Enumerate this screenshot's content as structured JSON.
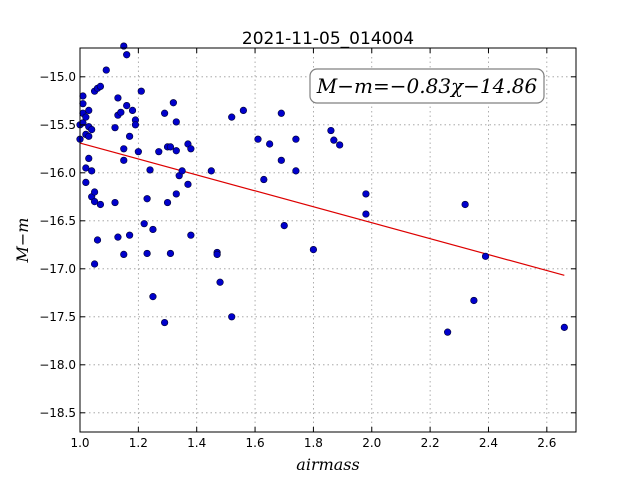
{
  "chart_data": {
    "type": "scatter",
    "title": "2021-11-05_014004",
    "xlabel": "airmass",
    "ylabel": "M−m",
    "xlim": [
      1.0,
      2.7
    ],
    "ylim": [
      -18.7,
      -14.7
    ],
    "y_inverted": true,
    "grid": true,
    "x_ticks": [
      1.0,
      1.2,
      1.4,
      1.6,
      1.8,
      2.0,
      2.2,
      2.4,
      2.6
    ],
    "x_tick_labels": [
      "1.0",
      "1.2",
      "1.4",
      "1.6",
      "1.8",
      "2.0",
      "2.2",
      "2.4",
      "2.6"
    ],
    "y_ticks": [
      -15.0,
      -15.5,
      -16.0,
      -16.5,
      -17.0,
      -17.5,
      -18.0,
      -18.5
    ],
    "y_tick_labels": [
      "−15.0",
      "−15.5",
      "−16.0",
      "−16.5",
      "−17.0",
      "−17.5",
      "−18.0",
      "−18.5"
    ],
    "annotation": "M−m=−0.83χ−14.86",
    "point_color": "#0000cc",
    "fit_color": "#dd0000",
    "fit": {
      "slope": -0.83,
      "intercept": -14.86,
      "x_range": [
        1.0,
        2.66
      ]
    },
    "points": [
      [
        1.0,
        -15.5
      ],
      [
        1.0,
        -15.65
      ],
      [
        1.01,
        -15.2
      ],
      [
        1.01,
        -15.28
      ],
      [
        1.01,
        -15.38
      ],
      [
        1.01,
        -15.48
      ],
      [
        1.02,
        -15.42
      ],
      [
        1.02,
        -15.6
      ],
      [
        1.02,
        -15.95
      ],
      [
        1.02,
        -16.1
      ],
      [
        1.03,
        -15.35
      ],
      [
        1.03,
        -15.52
      ],
      [
        1.03,
        -15.62
      ],
      [
        1.03,
        -15.85
      ],
      [
        1.04,
        -15.55
      ],
      [
        1.04,
        -15.98
      ],
      [
        1.04,
        -16.25
      ],
      [
        1.05,
        -15.15
      ],
      [
        1.05,
        -16.3
      ],
      [
        1.05,
        -16.95
      ],
      [
        1.05,
        -16.2
      ],
      [
        1.06,
        -15.12
      ],
      [
        1.06,
        -16.7
      ],
      [
        1.07,
        -15.1
      ],
      [
        1.07,
        -16.33
      ],
      [
        1.09,
        -14.93
      ],
      [
        1.12,
        -15.53
      ],
      [
        1.12,
        -16.31
      ],
      [
        1.13,
        -15.4
      ],
      [
        1.13,
        -15.22
      ],
      [
        1.13,
        -16.67
      ],
      [
        1.14,
        -15.37
      ],
      [
        1.15,
        -15.75
      ],
      [
        1.15,
        -15.87
      ],
      [
        1.15,
        -16.85
      ],
      [
        1.15,
        -14.68
      ],
      [
        1.16,
        -14.77
      ],
      [
        1.16,
        -15.3
      ],
      [
        1.17,
        -15.62
      ],
      [
        1.17,
        -16.65
      ],
      [
        1.18,
        -15.35
      ],
      [
        1.19,
        -15.45
      ],
      [
        1.19,
        -15.5
      ],
      [
        1.2,
        -15.78
      ],
      [
        1.21,
        -15.15
      ],
      [
        1.22,
        -16.53
      ],
      [
        1.23,
        -16.27
      ],
      [
        1.23,
        -16.84
      ],
      [
        1.24,
        -15.97
      ],
      [
        1.25,
        -16.59
      ],
      [
        1.25,
        -17.29
      ],
      [
        1.27,
        -15.78
      ],
      [
        1.29,
        -15.38
      ],
      [
        1.29,
        -17.56
      ],
      [
        1.3,
        -15.73
      ],
      [
        1.3,
        -16.31
      ],
      [
        1.31,
        -15.73
      ],
      [
        1.31,
        -16.84
      ],
      [
        1.32,
        -15.27
      ],
      [
        1.33,
        -15.47
      ],
      [
        1.33,
        -15.77
      ],
      [
        1.33,
        -16.22
      ],
      [
        1.34,
        -16.03
      ],
      [
        1.35,
        -15.98
      ],
      [
        1.37,
        -15.7
      ],
      [
        1.37,
        -16.12
      ],
      [
        1.38,
        -15.75
      ],
      [
        1.38,
        -16.65
      ],
      [
        1.45,
        -15.98
      ],
      [
        1.47,
        -16.83
      ],
      [
        1.47,
        -16.85
      ],
      [
        1.48,
        -17.14
      ],
      [
        1.52,
        -17.5
      ],
      [
        1.52,
        -15.42
      ],
      [
        1.56,
        -15.35
      ],
      [
        1.61,
        -15.65
      ],
      [
        1.63,
        -16.07
      ],
      [
        1.65,
        -15.7
      ],
      [
        1.69,
        -15.38
      ],
      [
        1.69,
        -15.87
      ],
      [
        1.7,
        -16.55
      ],
      [
        1.74,
        -15.65
      ],
      [
        1.74,
        -15.98
      ],
      [
        1.8,
        -16.8
      ],
      [
        1.86,
        -15.56
      ],
      [
        1.87,
        -15.66
      ],
      [
        1.89,
        -15.71
      ],
      [
        1.98,
        -16.22
      ],
      [
        1.98,
        -16.43
      ],
      [
        2.26,
        -17.66
      ],
      [
        2.32,
        -16.33
      ],
      [
        2.35,
        -17.33
      ],
      [
        2.39,
        -16.87
      ],
      [
        2.66,
        -17.61
      ]
    ]
  }
}
